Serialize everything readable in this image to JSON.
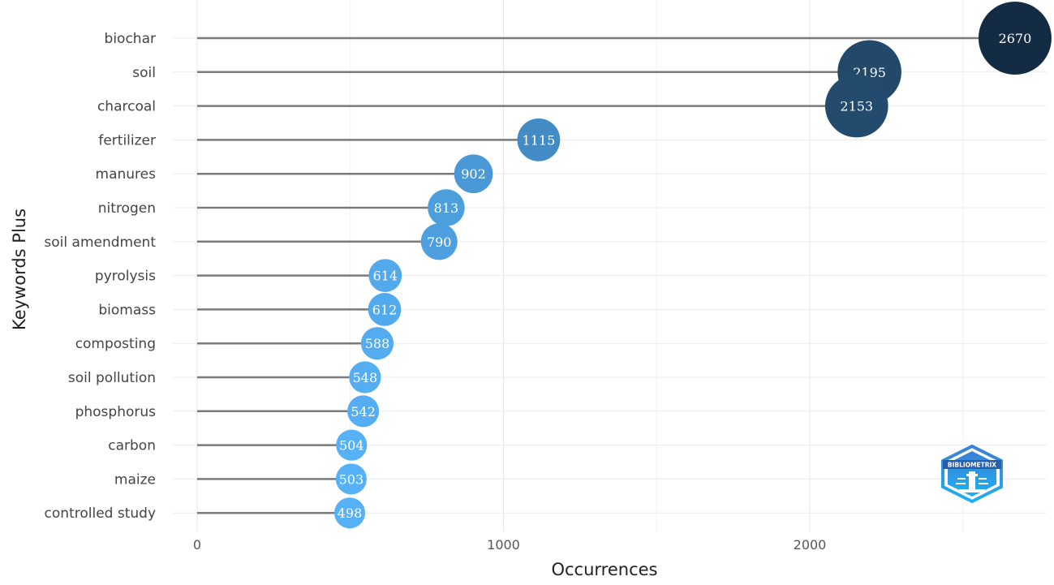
{
  "chart_data": {
    "type": "scatter",
    "style": "lollipop",
    "xlabel": "Occurrences",
    "ylabel": "Keywords Plus",
    "xlim": [
      0,
      2800
    ],
    "xticks": [
      0,
      1000,
      2000
    ],
    "grid": true,
    "categories": [
      "biochar",
      "soil",
      "charcoal",
      "fertilizer",
      "manures",
      "nitrogen",
      "soil amendment",
      "pyrolysis",
      "biomass",
      "composting",
      "soil pollution",
      "phosphorus",
      "carbon",
      "maize",
      "controlled study"
    ],
    "values": [
      2670,
      2195,
      2153,
      1115,
      902,
      813,
      790,
      614,
      612,
      588,
      548,
      542,
      504,
      503,
      498
    ],
    "data_labels": [
      "2670",
      "2195",
      "2153",
      "1115",
      "902",
      "813",
      "790",
      "614",
      "612",
      "588",
      "548",
      "542",
      "504",
      "503",
      "498"
    ],
    "color_scale": [
      "#56b1f7",
      "#132b43"
    ]
  },
  "logo": {
    "icon": "bibliometrix-logo-icon",
    "text": "BIBLIOMETRIX"
  }
}
